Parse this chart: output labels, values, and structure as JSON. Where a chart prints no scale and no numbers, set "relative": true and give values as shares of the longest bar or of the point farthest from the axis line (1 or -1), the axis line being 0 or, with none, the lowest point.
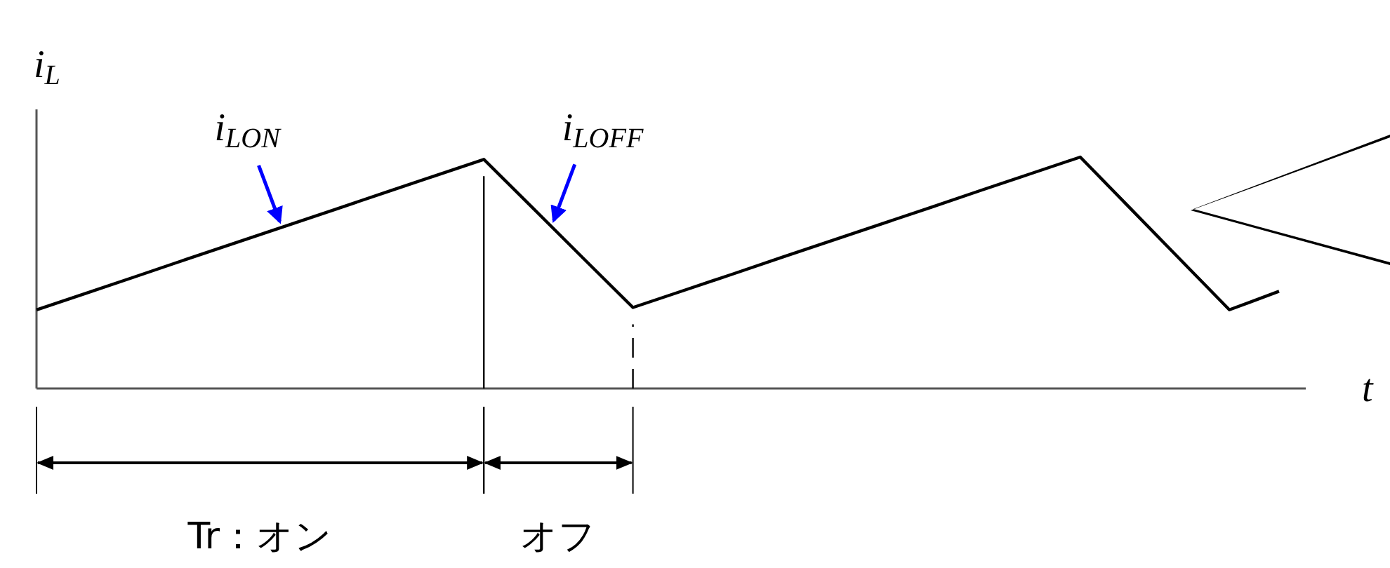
{
  "chart_data": {
    "type": "line",
    "relative": true,
    "xlabel": "t",
    "ylabel": "i$_{L}$",
    "categories": [
      null,
      null,
      null,
      null,
      null,
      null,
      null,
      null,
      null,
      null,
      null,
      null,
      null,
      null,
      null,
      null,
      null,
      null,
      null,
      null,
      null,
      null,
      null,
      null,
      null,
      null
    ],
    "series": [
      {
        "color": "#000000",
        "values": [
          0.34,
          0.412,
          0.484,
          0.557,
          0.629,
          0.701,
          0.773,
          0.846,
          0.918,
          0.99,
          0.777,
          0.563,
          0.35,
          0.422,
          0.494,
          0.567,
          0.639,
          0.711,
          0.783,
          0.856,
          0.928,
          1.0,
          0.78,
          0.56,
          0.34,
          0.42
        ]
      }
    ],
    "annotations": [
      "i$_{LON}$",
      "i$_{LOFF}$",
      "Tr：オン",
      "オフ"
    ]
  }
}
